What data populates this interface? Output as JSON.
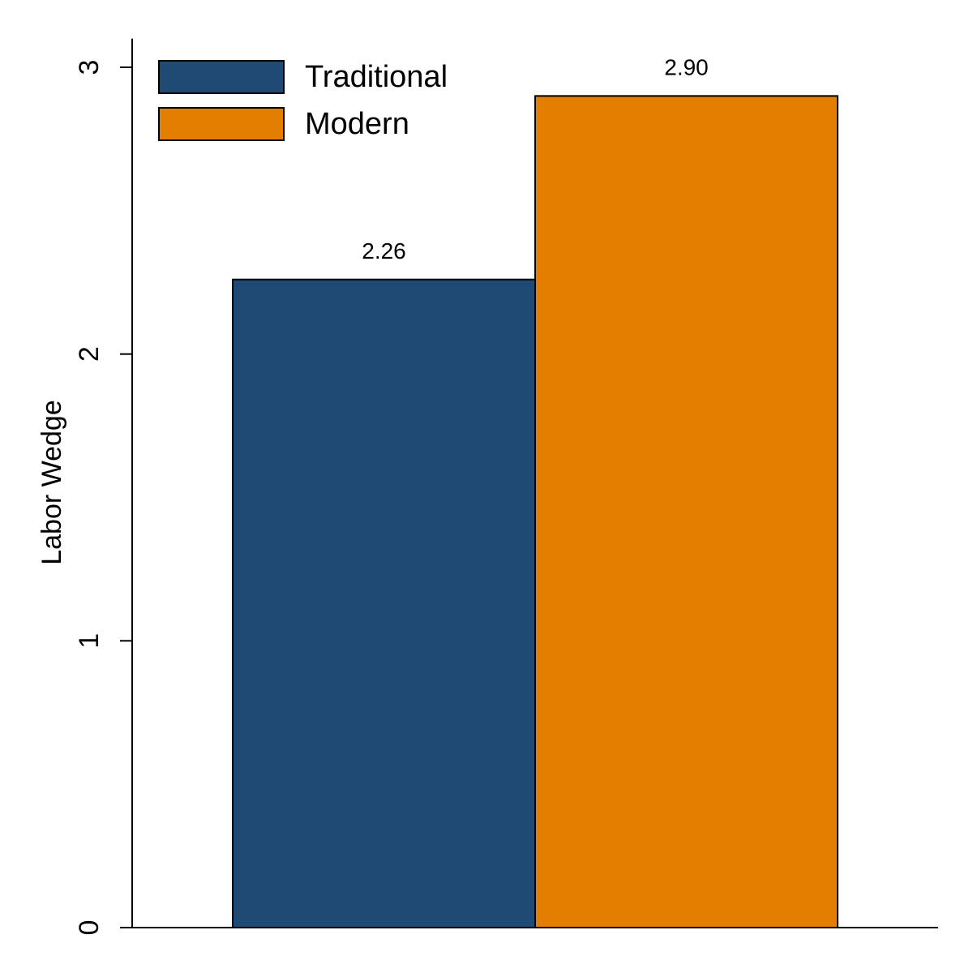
{
  "chart_data": {
    "type": "bar",
    "y_label": "Labor Wedge",
    "categories": [
      null
    ],
    "series": [
      {
        "name": "Traditional",
        "color": "#1e4a73",
        "values": [
          2.26
        ]
      },
      {
        "name": "Modern",
        "color": "#e37e00",
        "values": [
          2.9
        ],
        "value_labels": [
          "2.90"
        ]
      }
    ],
    "ylim": [
      0,
      3.1
    ],
    "yticks": [
      0,
      1,
      2,
      3
    ],
    "grid": false,
    "legend": "top-left"
  }
}
